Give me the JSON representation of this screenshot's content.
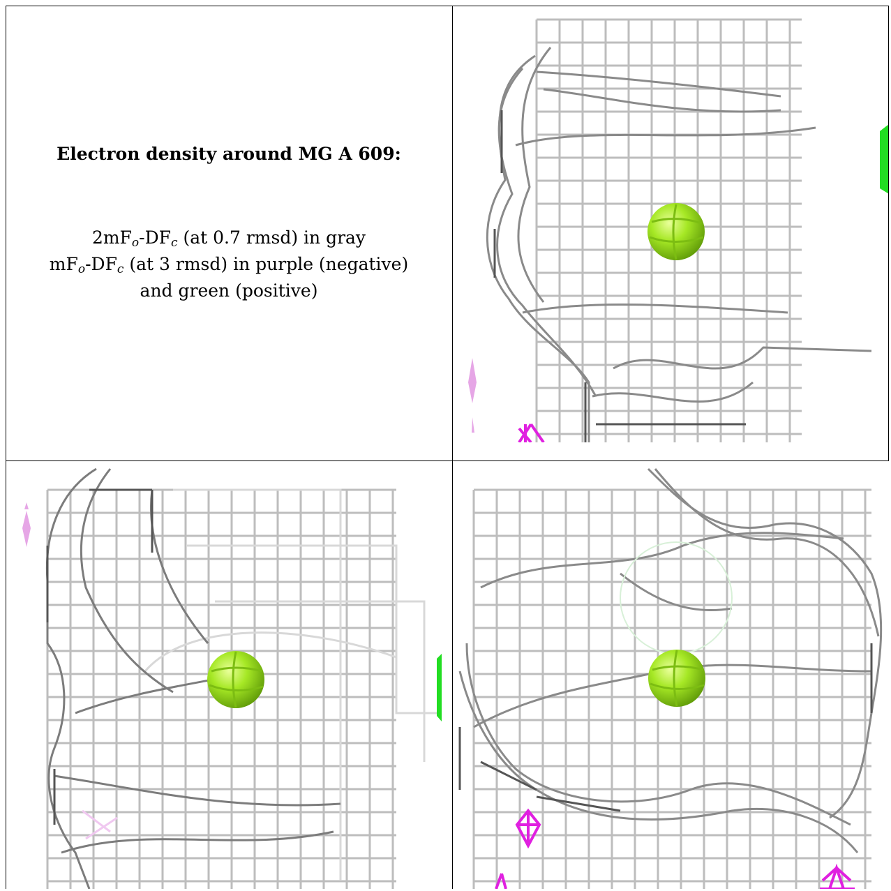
{
  "caption": {
    "title": "Electron density around MG A 609:",
    "line1": {
      "prefix": "2mF",
      "sub_o": "o",
      "mid": "-DF",
      "sub_c": "c",
      "suffix": " (at 0.7 rmsd) in gray"
    },
    "line2": {
      "prefix": "mF",
      "sub_o": "o",
      "mid": "-DF",
      "sub_c": "c",
      "suffix": " (at 3 rmsd) in purple (negative)"
    },
    "line3": "and green (positive)"
  },
  "colors": {
    "mesh_gray": "#b9b9b9",
    "mesh_dark": "#6e6e6e",
    "ion_green": "#9be21c",
    "positive_green": "#22dd22",
    "negative_purple": "#e020e0",
    "negative_light": "#e6a6e6"
  },
  "panels": [
    {
      "name": "view-top-right",
      "icon": "density-mesh-icon"
    },
    {
      "name": "view-bottom-left",
      "icon": "density-mesh-icon"
    },
    {
      "name": "view-bottom-right",
      "icon": "density-mesh-icon"
    }
  ]
}
